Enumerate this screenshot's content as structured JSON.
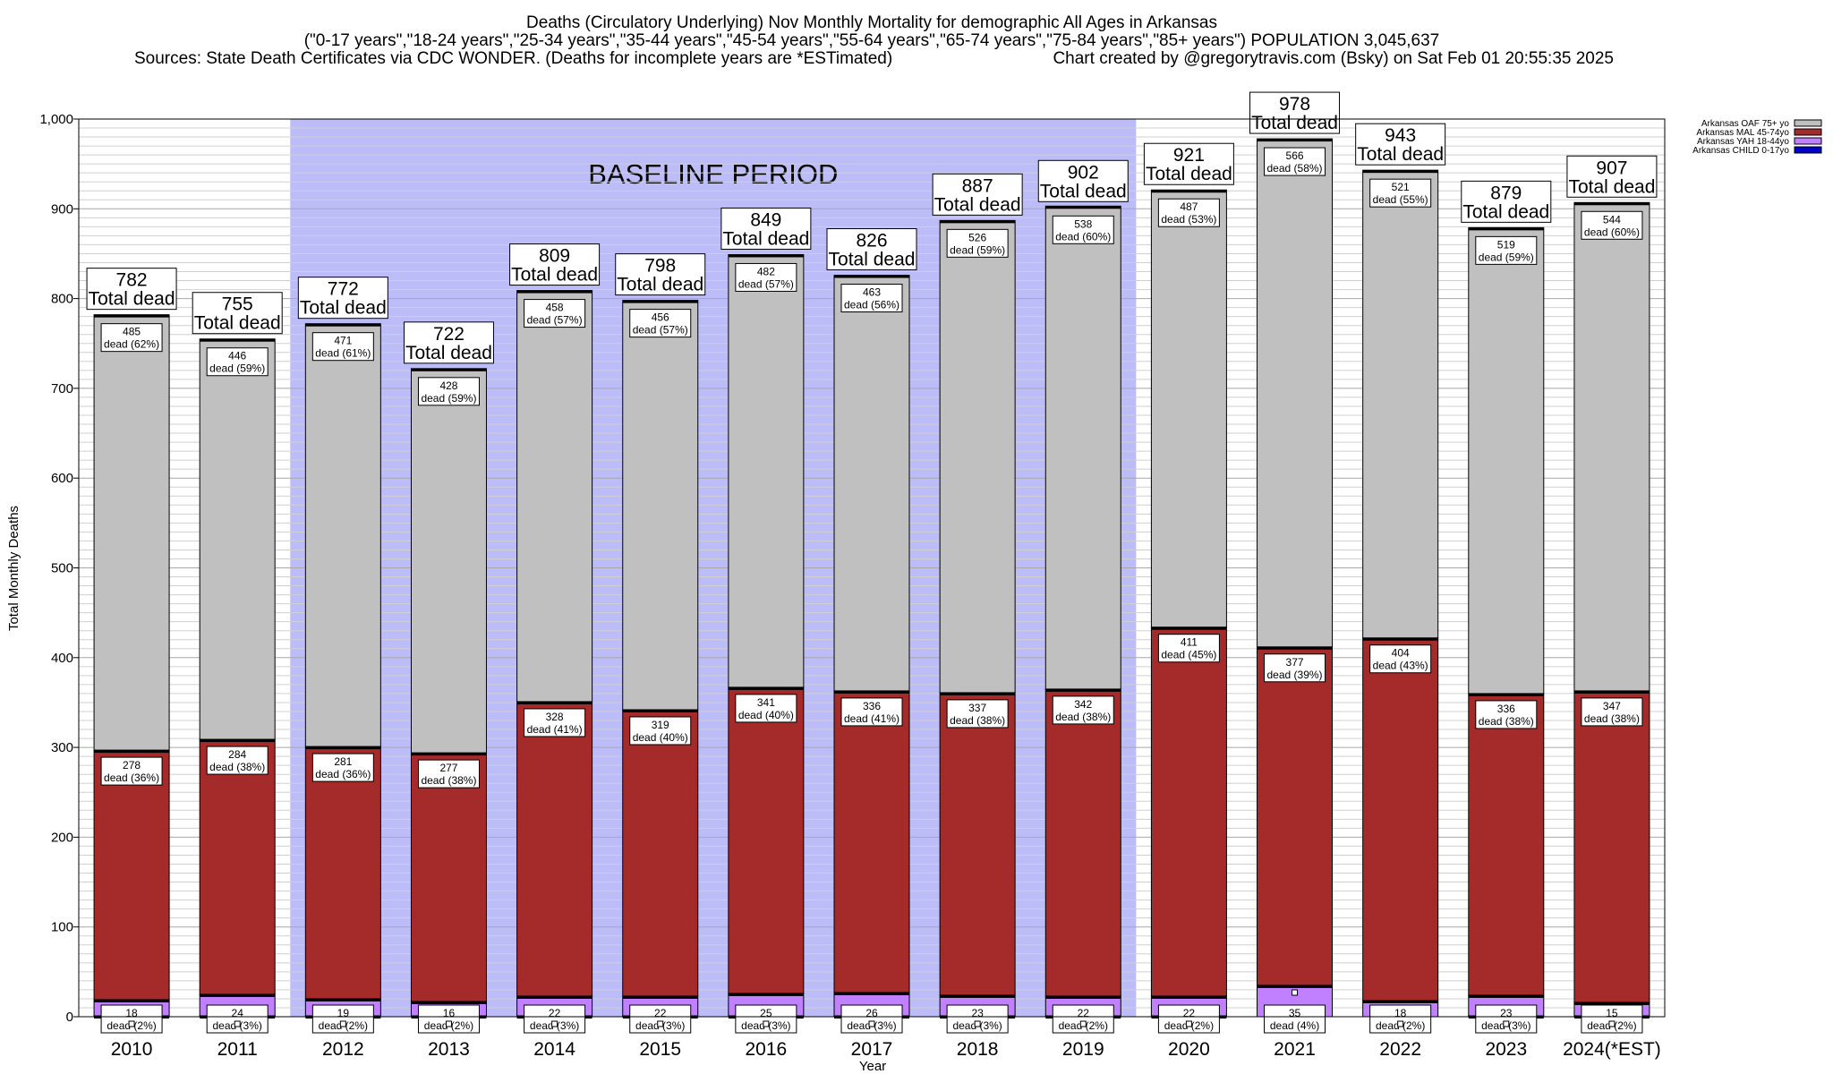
{
  "header": {
    "title_line1": "Deaths (Circulatory Underlying) Nov Monthly Mortality for demographic All Ages in Arkansas",
    "title_line2": "(\"0-17 years\",\"18-24 years\",\"25-34 years\",\"35-44 years\",\"45-54 years\",\"55-64 years\",\"65-74 years\",\"75-84 years\",\"85+ years\") POPULATION 3,045,637",
    "title_line3_left": "Sources: State Death Certificates via CDC WONDER. (Deaths for incomplete years are *ESTimated)",
    "title_line3_right": "Chart created by @gregorytravis.com (Bsky) on Sat Feb 01 20:55:35 2025"
  },
  "annotations": {
    "baseline_label": "BASELINE PERIOD",
    "total_label": "Total dead",
    "dead_word": "dead"
  },
  "chart_data": {
    "type": "bar",
    "stacked": true,
    "title": "Deaths (Circulatory Underlying) Nov Monthly Mortality for demographic All Ages in Arkansas",
    "xlabel": "Year",
    "ylabel": "Total Monthly Deaths",
    "ylim": [
      0,
      1000
    ],
    "y_ticks": [
      0,
      100,
      200,
      300,
      400,
      500,
      600,
      700,
      800,
      900,
      1000
    ],
    "y_tick_labels": [
      "0",
      "100",
      "200",
      "300",
      "400",
      "500",
      "600",
      "700",
      "800",
      "900",
      "1,000"
    ],
    "grid": true,
    "legend_position": "top-right",
    "baseline_period": [
      "2012",
      "2019"
    ],
    "categories": [
      "2010",
      "2011",
      "2012",
      "2013",
      "2014",
      "2015",
      "2016",
      "2017",
      "2018",
      "2019",
      "2020",
      "2021",
      "2022",
      "2023",
      "2024(*EST)"
    ],
    "totals": [
      782,
      755,
      772,
      722,
      809,
      798,
      849,
      826,
      887,
      902,
      921,
      978,
      943,
      879,
      907
    ],
    "series": [
      {
        "name": "Arkansas CHILD 0-17yo",
        "color": "#0000cc",
        "values": [
          1,
          1,
          1,
          1,
          1,
          1,
          1,
          1,
          1,
          1,
          1,
          0,
          0,
          1,
          1
        ],
        "labels": []
      },
      {
        "name": "Arkansas YAH 18-44yo",
        "color": "#c080ff",
        "values": [
          18,
          24,
          19,
          16,
          22,
          22,
          25,
          26,
          23,
          22,
          22,
          35,
          18,
          23,
          15
        ],
        "labels": [
          "(2%)",
          "(3%)",
          "(2%)",
          "(2%)",
          "(3%)",
          "(3%)",
          "(3%)",
          "(3%)",
          "(3%)",
          "(2%)",
          "(2%)",
          "(4%)",
          "(2%)",
          "(3%)",
          "(2%)"
        ]
      },
      {
        "name": "Arkansas MAL 45-74yo",
        "color": "#a52a2a",
        "values": [
          278,
          284,
          281,
          277,
          328,
          319,
          341,
          336,
          337,
          342,
          411,
          377,
          404,
          336,
          347
        ],
        "labels": [
          "(36%)",
          "(38%)",
          "(36%)",
          "(38%)",
          "(41%)",
          "(40%)",
          "(40%)",
          "(41%)",
          "(38%)",
          "(38%)",
          "(45%)",
          "(39%)",
          "(43%)",
          "(38%)",
          "(38%)"
        ]
      },
      {
        "name": "Arkansas OAF 75+ yo",
        "color": "#c0c0c0",
        "values": [
          485,
          446,
          471,
          428,
          458,
          456,
          482,
          463,
          526,
          538,
          487,
          566,
          521,
          519,
          544
        ],
        "labels": [
          "(62%)",
          "(59%)",
          "(61%)",
          "(59%)",
          "(57%)",
          "(57%)",
          "(57%)",
          "(56%)",
          "(59%)",
          "(60%)",
          "(53%)",
          "(58%)",
          "(55%)",
          "(59%)",
          "(60%)"
        ]
      }
    ],
    "legend_order": [
      "Arkansas OAF 75+ yo",
      "Arkansas MAL 45-74yo",
      "Arkansas YAH 18-44yo",
      "Arkansas CHILD 0-17yo"
    ]
  }
}
